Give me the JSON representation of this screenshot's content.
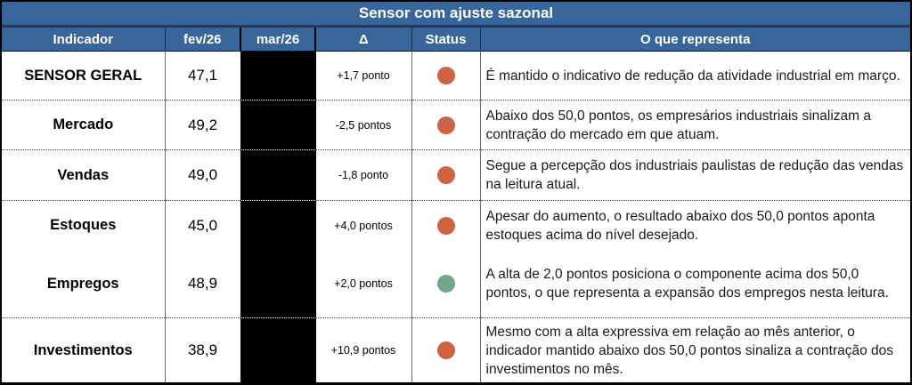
{
  "chart_data": {
    "type": "table",
    "title": "Sensor com ajuste sazonal",
    "columns": [
      "Indicador",
      "fev/26",
      "mar/26",
      "Δ",
      "Status",
      "O que representa"
    ],
    "notes": "mar/26 column values are redacted with solid black boxes",
    "rows": [
      {
        "indicador": "SENSOR GERAL",
        "fev": "47,1",
        "delta": "+1,7 ponto",
        "status": "red",
        "descricao": "É mantido o indicativo de redução da atividade industrial em março."
      },
      {
        "indicador": "Mercado",
        "fev": "49,2",
        "delta": "-2,5 pontos",
        "status": "red",
        "descricao": "Abaixo dos 50,0 pontos, os empresários industriais sinalizam a contração do mercado em que atuam."
      },
      {
        "indicador": "Vendas",
        "fev": "49,0",
        "delta": "-1,8 ponto",
        "status": "red",
        "descricao": "Segue a percepção dos industriais paulistas de redução das vendas na leitura atual."
      },
      {
        "indicador": "Estoques",
        "fev": "45,0",
        "delta": "+4,0 pontos",
        "status": "red",
        "descricao": "Apesar do aumento, o resultado abaixo dos 50,0 pontos aponta estoques acima do nível desejado."
      },
      {
        "indicador": "Empregos",
        "fev": "48,9",
        "delta": "+2,0 pontos",
        "status": "green",
        "descricao": "A alta de 2,0 pontos posiciona o componente acima dos 50,0 pontos, o que representa a expansão dos empregos nesta leitura."
      },
      {
        "indicador": "Investimentos",
        "fev": "38,9",
        "delta": "+10,9 pontos",
        "status": "red",
        "descricao": "Mesmo com a alta expressiva em relação ao mês anterior, o indicador mantido abaixo dos 50,0 pontos sinaliza a contração dos investimentos no mês."
      }
    ]
  },
  "colors": {
    "header_blue": "#38669A",
    "divider_navy": "#1F3864",
    "redacted_black": "#000000",
    "status": {
      "red": "#CE6245",
      "green": "#73A68C"
    }
  }
}
